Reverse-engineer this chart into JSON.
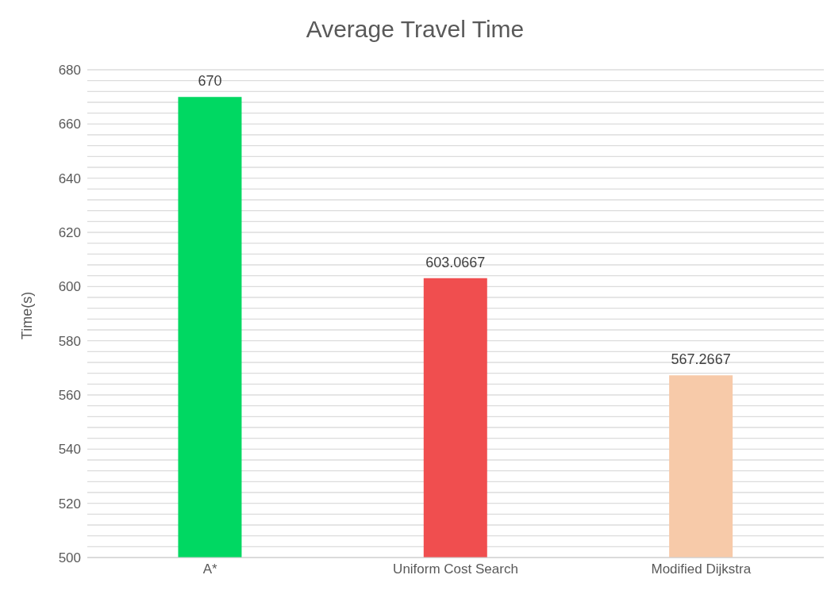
{
  "chart_data": {
    "type": "bar",
    "title": "Average Travel Time",
    "ylabel": "Time(s)",
    "categories": [
      "A*",
      "Uniform Cost Search",
      "Modified Dijkstra"
    ],
    "values": [
      670,
      603.0667,
      567.2667
    ],
    "colors": [
      "#00d862",
      "#f04e4f",
      "#f7caa9"
    ],
    "ylim": [
      500,
      680
    ],
    "yticks": [
      500,
      {
        "value": 504,
        "label": null
      },
      {
        "value": 508,
        "label": null
      },
      {
        "value": 512,
        "label": null
      },
      {
        "value": 516,
        "label": null
      },
      520,
      {
        "value": 524,
        "label": null
      },
      {
        "value": 528,
        "label": null
      },
      {
        "value": 532,
        "label": null
      },
      {
        "value": 536,
        "label": null
      },
      540,
      {
        "value": 544,
        "label": null
      },
      {
        "value": 548,
        "label": null
      },
      {
        "value": 552,
        "label": null
      },
      {
        "value": 556,
        "label": null
      },
      560,
      {
        "value": 564,
        "label": null
      },
      {
        "value": 568,
        "label": null
      },
      {
        "value": 572,
        "label": null
      },
      {
        "value": 576,
        "label": null
      },
      580,
      {
        "value": 584,
        "label": null
      },
      {
        "value": 588,
        "label": null
      },
      {
        "value": 592,
        "label": null
      },
      {
        "value": 596,
        "label": null
      },
      600,
      {
        "value": 604,
        "label": null
      },
      {
        "value": 608,
        "label": null
      },
      {
        "value": 612,
        "label": null
      },
      {
        "value": 616,
        "label": null
      },
      620,
      {
        "value": 624,
        "label": null
      },
      {
        "value": 628,
        "label": null
      },
      {
        "value": 632,
        "label": null
      },
      {
        "value": 636,
        "label": null
      },
      640,
      {
        "value": 644,
        "label": null
      },
      {
        "value": 648,
        "label": null
      },
      {
        "value": 652,
        "label": null
      },
      {
        "value": 656,
        "label": null
      },
      660,
      {
        "value": 664,
        "label": null
      },
      {
        "value": 668,
        "label": null
      },
      {
        "value": 672,
        "label": null
      },
      {
        "value": 676,
        "label": null
      },
      680
    ],
    "grid": "y",
    "data_labels": true
  }
}
